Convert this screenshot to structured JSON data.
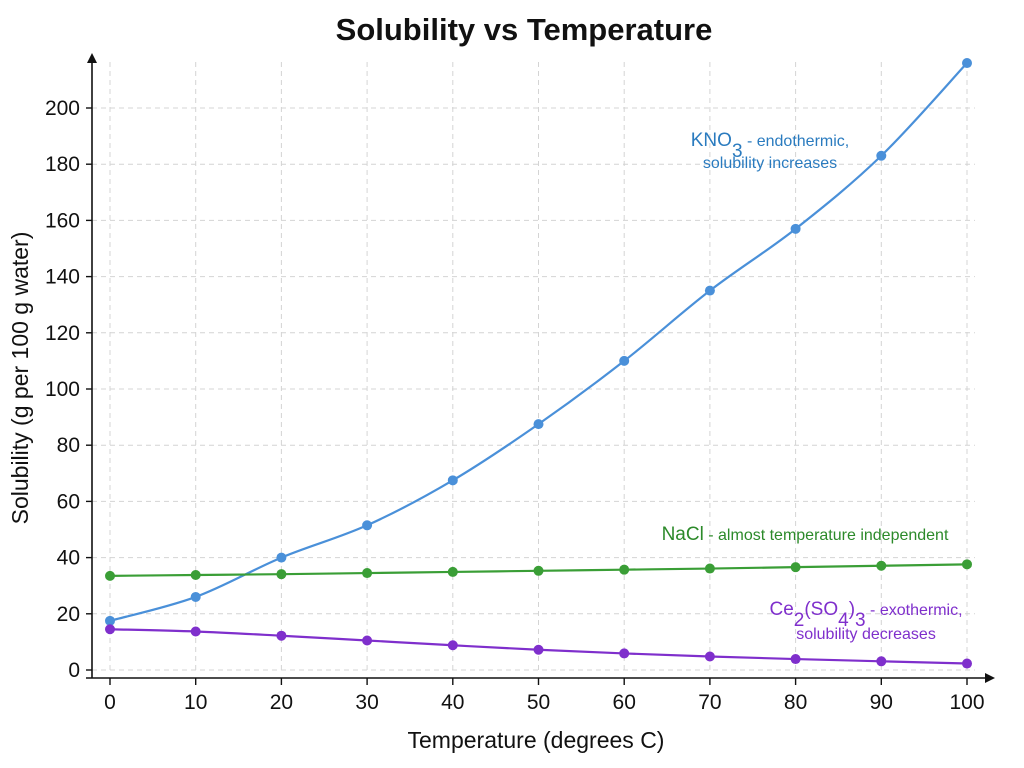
{
  "chart_data": {
    "type": "line",
    "title": "Solubility vs Temperature",
    "xlabel": "Temperature (degrees C)",
    "ylabel": "Solubility (g per 100 g water)",
    "x": [
      0,
      10,
      20,
      30,
      40,
      50,
      60,
      70,
      80,
      90,
      100
    ],
    "x_ticks": [
      0,
      10,
      20,
      30,
      40,
      50,
      60,
      70,
      80,
      90,
      100
    ],
    "y_ticks": [
      0,
      20,
      40,
      60,
      80,
      100,
      120,
      140,
      160,
      180,
      200
    ],
    "xlim": [
      0,
      100
    ],
    "ylim": [
      0,
      200
    ],
    "grid": true,
    "series": [
      {
        "key": "kno3",
        "color": "#4a90d9",
        "values": [
          17.5,
          26,
          40,
          51.5,
          67.5,
          87.5,
          110,
          135,
          157,
          183,
          216
        ]
      },
      {
        "key": "nacl",
        "color": "#3a9e36",
        "values": [
          33.5,
          33.8,
          34.1,
          34.5,
          34.9,
          35.3,
          35.7,
          36.1,
          36.6,
          37.1,
          37.6
        ]
      },
      {
        "key": "ce2so43",
        "color": "#7f2fcc",
        "values": [
          14.5,
          13.7,
          12.2,
          10.5,
          8.8,
          7.2,
          5.9,
          4.8,
          3.9,
          3.1,
          2.3
        ]
      }
    ],
    "annotations": [
      {
        "key": "kno3",
        "color": "#2a7bbf",
        "formula_parts": [
          {
            "t": "KNO"
          },
          {
            "t": "3",
            "sub": true
          }
        ],
        "suffix": " - endothermic,",
        "line2": "solubility increases"
      },
      {
        "key": "nacl",
        "color": "#2c8a2a",
        "formula_parts": [
          {
            "t": "NaCl"
          }
        ],
        "suffix": " - almost temperature independent",
        "line2": ""
      },
      {
        "key": "ce2so43",
        "color": "#7f2fcc",
        "formula_parts": [
          {
            "t": "Ce"
          },
          {
            "t": "2",
            "sub": true
          },
          {
            "t": "(SO"
          },
          {
            "t": "4",
            "sub": true
          },
          {
            "t": ")"
          },
          {
            "t": "3",
            "sub": true
          }
        ],
        "suffix": " - exothermic,",
        "line2": "solubility decreases"
      }
    ]
  }
}
